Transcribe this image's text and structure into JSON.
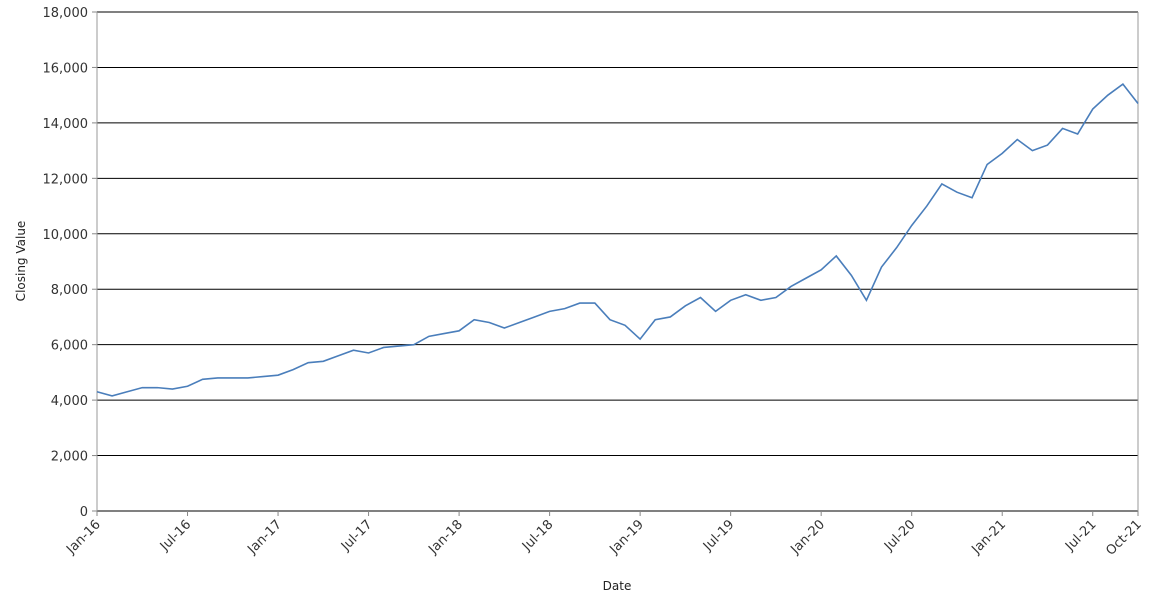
{
  "chart_data": {
    "type": "line",
    "x_label": "Date",
    "y_label": "Closing Value",
    "x": [
      "2016-01",
      "2016-02",
      "2016-03",
      "2016-04",
      "2016-05",
      "2016-06",
      "2016-07",
      "2016-08",
      "2016-09",
      "2016-10",
      "2016-11",
      "2016-12",
      "2017-01",
      "2017-02",
      "2017-03",
      "2017-04",
      "2017-05",
      "2017-06",
      "2017-07",
      "2017-08",
      "2017-09",
      "2017-10",
      "2017-11",
      "2017-12",
      "2018-01",
      "2018-02",
      "2018-03",
      "2018-04",
      "2018-05",
      "2018-06",
      "2018-07",
      "2018-08",
      "2018-09",
      "2018-10",
      "2018-11",
      "2018-12",
      "2019-01",
      "2019-02",
      "2019-03",
      "2019-04",
      "2019-05",
      "2019-06",
      "2019-07",
      "2019-08",
      "2019-09",
      "2019-10",
      "2019-11",
      "2019-12",
      "2020-01",
      "2020-02",
      "2020-03",
      "2020-04",
      "2020-05",
      "2020-06",
      "2020-07",
      "2020-08",
      "2020-09",
      "2020-10",
      "2020-11",
      "2020-12",
      "2021-01",
      "2021-02",
      "2021-03",
      "2021-04",
      "2021-05",
      "2021-06",
      "2021-07",
      "2021-08",
      "2021-09",
      "2021-10"
    ],
    "series": [
      {
        "name": "Closing Value",
        "color": "#4a7ebb",
        "values": [
          4300,
          4150,
          4300,
          4450,
          4450,
          4400,
          4500,
          4750,
          4800,
          4800,
          4800,
          4850,
          4900,
          5100,
          5350,
          5400,
          5600,
          5800,
          5700,
          5900,
          5950,
          6000,
          6300,
          6400,
          6500,
          6900,
          6800,
          6600,
          6800,
          7000,
          7200,
          7300,
          7500,
          7500,
          6900,
          6700,
          6200,
          6900,
          7000,
          7400,
          7700,
          7200,
          7600,
          7800,
          7600,
          7700,
          8100,
          8400,
          8700,
          9200,
          8500,
          7600,
          8800,
          9500,
          10300,
          11000,
          11800,
          11500,
          11300,
          12500,
          12900,
          13400,
          13000,
          13200,
          13800,
          13600,
          14500,
          15000,
          15400,
          14700
        ]
      }
    ],
    "xlim": [
      "2016-01",
      "2021-10"
    ],
    "xticks": [
      {
        "value": "2016-01",
        "label": "Jan-16"
      },
      {
        "value": "2016-07",
        "label": "Jul-16"
      },
      {
        "value": "2017-01",
        "label": "Jan-17"
      },
      {
        "value": "2017-07",
        "label": "Jul-17"
      },
      {
        "value": "2018-01",
        "label": "Jan-18"
      },
      {
        "value": "2018-07",
        "label": "Jul-18"
      },
      {
        "value": "2019-01",
        "label": "Jan-19"
      },
      {
        "value": "2019-07",
        "label": "Jul-19"
      },
      {
        "value": "2020-01",
        "label": "Jan-20"
      },
      {
        "value": "2020-07",
        "label": "Jul-20"
      },
      {
        "value": "2021-01",
        "label": "Jan-21"
      },
      {
        "value": "2021-07",
        "label": "Jul-21"
      },
      {
        "value": "2021-10",
        "label": "Oct-21"
      }
    ],
    "ylim": [
      0,
      18000
    ],
    "yticks": [
      0,
      {
        "value": 2000,
        "label": "2,000"
      },
      {
        "value": 4000,
        "label": "4,000"
      },
      {
        "value": 6000,
        "label": "6,000"
      },
      {
        "value": 8000,
        "label": "8,000"
      },
      {
        "value": 10000,
        "label": "10,000"
      },
      {
        "value": 12000,
        "label": "12,000"
      },
      {
        "value": 14000,
        "label": "14,000"
      },
      {
        "value": 16000,
        "label": "16,000"
      },
      {
        "value": 18000,
        "label": "18,000"
      }
    ],
    "grid": true
  }
}
